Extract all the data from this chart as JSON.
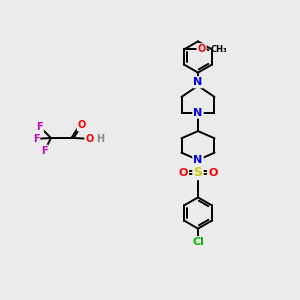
{
  "background_color": "#ebebeb",
  "bond_color": "#000000",
  "atom_colors": {
    "N": "#0000ff",
    "O": "#ff0000",
    "F": "#cc00cc",
    "S": "#cccc00",
    "Cl": "#00bb00",
    "H": "#888888"
  },
  "figsize": [
    3.0,
    3.0
  ],
  "dpi": 100,
  "lw": 1.4
}
